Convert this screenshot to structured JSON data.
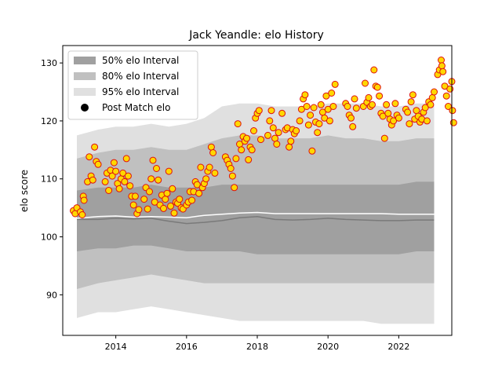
{
  "chart_data": {
    "type": "scatter",
    "title": "Jack Yeandle: elo History",
    "xlabel": "",
    "ylabel": "elo score",
    "xlim": [
      2012.5,
      2023.5
    ],
    "ylim": [
      83,
      133
    ],
    "x_ticks": [
      2014,
      2016,
      2018,
      2020,
      2022
    ],
    "y_ticks": [
      90,
      100,
      110,
      120,
      130
    ],
    "grid": false,
    "legend_position": "top-left",
    "legend": [
      {
        "label": "50% elo Interval",
        "color": "#a0a0a0"
      },
      {
        "label": "80% elo Interval",
        "color": "#c0c0c0"
      },
      {
        "label": "95% elo Interval",
        "color": "#e0e0e0"
      },
      {
        "label": "Post Match elo",
        "color": "#000000"
      }
    ],
    "colors": {
      "point_fill": "#ffd700",
      "point_edge": "#dd1111",
      "mean_line": "#ffffff",
      "median_line": "#7a7a7a"
    },
    "bands": {
      "x": [
        2012.9,
        2013.5,
        2014.0,
        2014.5,
        2015.0,
        2015.5,
        2016.0,
        2016.5,
        2017.0,
        2017.5,
        2018.0,
        2018.5,
        2019.0,
        2019.5,
        2020.0,
        2020.5,
        2021.0,
        2021.5,
        2022.0,
        2022.5,
        2023.0
      ],
      "p95_low": [
        86.0,
        87.0,
        87.0,
        87.5,
        88.0,
        87.5,
        87.0,
        86.5,
        86.0,
        85.5,
        85.5,
        85.5,
        85.5,
        85.5,
        85.5,
        85.5,
        85.5,
        85.0,
        85.0,
        85.0,
        85.0
      ],
      "p80_low": [
        91.0,
        92.0,
        92.5,
        93.0,
        93.5,
        93.0,
        92.5,
        92.0,
        92.0,
        92.0,
        92.0,
        92.0,
        92.0,
        92.0,
        92.0,
        92.0,
        92.0,
        92.0,
        92.0,
        92.0,
        92.0
      ],
      "p50_low": [
        97.5,
        98.0,
        98.0,
        98.5,
        98.5,
        98.0,
        97.5,
        97.5,
        97.5,
        97.5,
        97.0,
        97.0,
        97.0,
        97.0,
        97.0,
        97.0,
        97.0,
        97.0,
        97.0,
        97.5,
        97.5
      ],
      "median": [
        103.0,
        103.0,
        103.2,
        103.1,
        103.2,
        102.7,
        102.3,
        102.5,
        102.8,
        103.3,
        103.5,
        103.0,
        102.9,
        103.0,
        103.2,
        103.0,
        102.9,
        102.8,
        102.8,
        102.9,
        102.9
      ],
      "mean": [
        103.2,
        103.5,
        103.6,
        103.4,
        103.5,
        103.4,
        103.3,
        103.7,
        103.9,
        104.1,
        104.2,
        104.0,
        104.0,
        104.0,
        104.0,
        104.0,
        104.0,
        104.0,
        103.9,
        103.9,
        103.9
      ],
      "p50_high": [
        108.0,
        108.5,
        108.5,
        108.5,
        109.0,
        108.5,
        108.5,
        108.5,
        109.0,
        109.0,
        109.0,
        109.0,
        109.0,
        109.0,
        109.0,
        109.0,
        109.0,
        109.0,
        109.0,
        109.5,
        109.5
      ],
      "p80_high": [
        113.5,
        114.5,
        115.0,
        115.0,
        115.5,
        115.0,
        115.0,
        116.0,
        117.0,
        117.5,
        117.5,
        117.0,
        117.0,
        117.0,
        117.5,
        117.0,
        117.0,
        116.5,
        116.5,
        117.0,
        117.0
      ],
      "p95_high": [
        117.5,
        118.5,
        119.0,
        119.0,
        119.5,
        119.0,
        119.5,
        120.5,
        122.5,
        123.0,
        123.0,
        122.5,
        122.5,
        122.5,
        123.0,
        123.0,
        123.0,
        122.5,
        122.5,
        123.0,
        123.0
      ]
    },
    "points": [
      [
        2012.8,
        104.5
      ],
      [
        2012.85,
        104.0
      ],
      [
        2012.9,
        105.0
      ],
      [
        2013.0,
        104.3
      ],
      [
        2013.05,
        103.8
      ],
      [
        2013.08,
        107.0
      ],
      [
        2013.1,
        106.3
      ],
      [
        2013.2,
        109.5
      ],
      [
        2013.25,
        113.8
      ],
      [
        2013.3,
        110.5
      ],
      [
        2013.35,
        109.8
      ],
      [
        2013.4,
        115.5
      ],
      [
        2013.45,
        113.0
      ],
      [
        2013.5,
        112.5
      ],
      [
        2013.7,
        109.5
      ],
      [
        2013.75,
        111.0
      ],
      [
        2013.8,
        108.0
      ],
      [
        2013.85,
        111.5
      ],
      [
        2013.9,
        110.5
      ],
      [
        2013.95,
        112.8
      ],
      [
        2014.0,
        111.3
      ],
      [
        2014.05,
        109.2
      ],
      [
        2014.1,
        108.3
      ],
      [
        2014.15,
        110.0
      ],
      [
        2014.2,
        111.0
      ],
      [
        2014.25,
        109.5
      ],
      [
        2014.3,
        113.5
      ],
      [
        2014.35,
        110.5
      ],
      [
        2014.4,
        108.8
      ],
      [
        2014.45,
        107.0
      ],
      [
        2014.5,
        105.5
      ],
      [
        2014.55,
        107.0
      ],
      [
        2014.6,
        104.0
      ],
      [
        2014.65,
        104.7
      ],
      [
        2014.8,
        106.5
      ],
      [
        2014.85,
        108.5
      ],
      [
        2014.9,
        104.8
      ],
      [
        2014.95,
        107.8
      ],
      [
        2015.0,
        110.0
      ],
      [
        2015.05,
        113.2
      ],
      [
        2015.1,
        106.0
      ],
      [
        2015.15,
        111.8
      ],
      [
        2015.2,
        109.8
      ],
      [
        2015.25,
        105.5
      ],
      [
        2015.3,
        107.2
      ],
      [
        2015.35,
        104.9
      ],
      [
        2015.4,
        106.5
      ],
      [
        2015.45,
        107.5
      ],
      [
        2015.5,
        111.3
      ],
      [
        2015.55,
        105.3
      ],
      [
        2015.6,
        108.3
      ],
      [
        2015.65,
        104.1
      ],
      [
        2015.7,
        106.0
      ],
      [
        2015.75,
        105.8
      ],
      [
        2015.8,
        106.5
      ],
      [
        2015.85,
        105.0
      ],
      [
        2015.9,
        104.8
      ],
      [
        2016.0,
        105.5
      ],
      [
        2016.05,
        106.0
      ],
      [
        2016.1,
        107.8
      ],
      [
        2016.15,
        106.3
      ],
      [
        2016.2,
        107.8
      ],
      [
        2016.25,
        109.5
      ],
      [
        2016.3,
        109.0
      ],
      [
        2016.35,
        107.5
      ],
      [
        2016.4,
        112.0
      ],
      [
        2016.45,
        108.5
      ],
      [
        2016.5,
        109.2
      ],
      [
        2016.55,
        110.0
      ],
      [
        2016.6,
        111.3
      ],
      [
        2016.65,
        112.0
      ],
      [
        2016.7,
        115.5
      ],
      [
        2016.75,
        114.5
      ],
      [
        2016.8,
        111.0
      ],
      [
        2017.1,
        113.8
      ],
      [
        2017.15,
        113.2
      ],
      [
        2017.2,
        112.5
      ],
      [
        2017.25,
        111.8
      ],
      [
        2017.3,
        110.5
      ],
      [
        2017.35,
        108.5
      ],
      [
        2017.4,
        113.5
      ],
      [
        2017.45,
        119.5
      ],
      [
        2017.5,
        116.0
      ],
      [
        2017.55,
        115.0
      ],
      [
        2017.6,
        117.3
      ],
      [
        2017.65,
        116.5
      ],
      [
        2017.7,
        117.0
      ],
      [
        2017.75,
        113.3
      ],
      [
        2017.8,
        115.5
      ],
      [
        2017.85,
        115.0
      ],
      [
        2017.9,
        118.3
      ],
      [
        2017.95,
        120.5
      ],
      [
        2018.0,
        121.3
      ],
      [
        2018.05,
        121.8
      ],
      [
        2018.1,
        116.8
      ],
      [
        2018.3,
        117.5
      ],
      [
        2018.35,
        120.0
      ],
      [
        2018.4,
        121.8
      ],
      [
        2018.45,
        118.8
      ],
      [
        2018.5,
        117.0
      ],
      [
        2018.55,
        116.0
      ],
      [
        2018.6,
        118.0
      ],
      [
        2018.7,
        121.3
      ],
      [
        2018.8,
        118.5
      ],
      [
        2018.85,
        118.8
      ],
      [
        2018.9,
        115.5
      ],
      [
        2018.95,
        116.5
      ],
      [
        2019.0,
        118.5
      ],
      [
        2019.05,
        117.8
      ],
      [
        2019.1,
        118.3
      ],
      [
        2019.2,
        120.0
      ],
      [
        2019.25,
        122.0
      ],
      [
        2019.3,
        123.8
      ],
      [
        2019.35,
        124.5
      ],
      [
        2019.4,
        122.5
      ],
      [
        2019.45,
        119.3
      ],
      [
        2019.5,
        121.0
      ],
      [
        2019.55,
        114.8
      ],
      [
        2019.6,
        122.3
      ],
      [
        2019.65,
        119.8
      ],
      [
        2019.7,
        118.0
      ],
      [
        2019.75,
        119.5
      ],
      [
        2019.8,
        122.8
      ],
      [
        2019.85,
        121.5
      ],
      [
        2019.9,
        120.5
      ],
      [
        2019.95,
        124.3
      ],
      [
        2020.0,
        122.0
      ],
      [
        2020.05,
        120.0
      ],
      [
        2020.1,
        124.8
      ],
      [
        2020.15,
        122.5
      ],
      [
        2020.2,
        126.3
      ],
      [
        2020.5,
        123.0
      ],
      [
        2020.55,
        122.5
      ],
      [
        2020.6,
        121.0
      ],
      [
        2020.65,
        120.5
      ],
      [
        2020.7,
        119.0
      ],
      [
        2020.75,
        123.8
      ],
      [
        2020.8,
        122.2
      ],
      [
        2021.0,
        122.5
      ],
      [
        2021.05,
        126.5
      ],
      [
        2021.1,
        123.2
      ],
      [
        2021.15,
        124.0
      ],
      [
        2021.2,
        122.5
      ],
      [
        2021.25,
        122.8
      ],
      [
        2021.3,
        128.8
      ],
      [
        2021.35,
        126.0
      ],
      [
        2021.4,
        125.8
      ],
      [
        2021.45,
        124.3
      ],
      [
        2021.5,
        121.3
      ],
      [
        2021.55,
        120.8
      ],
      [
        2021.6,
        117.0
      ],
      [
        2021.65,
        122.8
      ],
      [
        2021.7,
        121.3
      ],
      [
        2021.75,
        120.3
      ],
      [
        2021.8,
        119.3
      ],
      [
        2021.85,
        120.0
      ],
      [
        2021.9,
        123.0
      ],
      [
        2021.95,
        121.0
      ],
      [
        2022.0,
        120.5
      ],
      [
        2022.2,
        122.0
      ],
      [
        2022.25,
        121.5
      ],
      [
        2022.3,
        119.5
      ],
      [
        2022.35,
        123.3
      ],
      [
        2022.4,
        124.5
      ],
      [
        2022.45,
        120.3
      ],
      [
        2022.5,
        121.8
      ],
      [
        2022.55,
        120.8
      ],
      [
        2022.6,
        119.8
      ],
      [
        2022.65,
        120.3
      ],
      [
        2022.7,
        121.5
      ],
      [
        2022.75,
        122.3
      ],
      [
        2022.8,
        120.0
      ],
      [
        2022.85,
        123.3
      ],
      [
        2022.9,
        122.8
      ],
      [
        2022.95,
        124.0
      ],
      [
        2023.0,
        125.0
      ],
      [
        2023.1,
        128.0
      ],
      [
        2023.15,
        128.8
      ],
      [
        2023.2,
        130.5
      ],
      [
        2023.22,
        129.5
      ],
      [
        2023.25,
        128.5
      ],
      [
        2023.3,
        126.0
      ],
      [
        2023.35,
        124.3
      ],
      [
        2023.4,
        122.5
      ],
      [
        2023.45,
        125.5
      ],
      [
        2023.5,
        126.8
      ],
      [
        2023.52,
        121.8
      ],
      [
        2023.55,
        119.7
      ]
    ]
  }
}
